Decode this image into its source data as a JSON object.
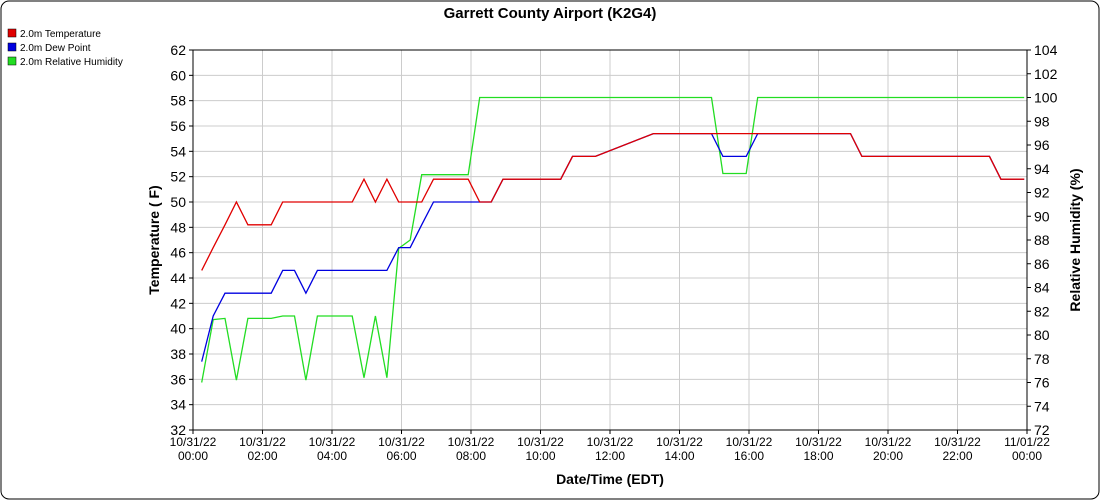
{
  "chart_data": {
    "type": "line",
    "title": "Garrett County Airport (K2G4)",
    "xlabel": "Date/Time (EDT)",
    "ylabel": "Temperature ( F)",
    "y2label": "Relative Humidity (%)",
    "x": [
      0.25,
      0.58,
      0.92,
      1.25,
      1.58,
      2.25,
      2.58,
      2.92,
      3.25,
      3.58,
      4.58,
      4.92,
      5.25,
      5.58,
      5.92,
      6.25,
      6.58,
      6.92,
      7.92,
      8.25,
      8.58,
      8.92,
      10.58,
      10.92,
      11.58,
      13.25,
      14.92,
      15.25,
      15.92,
      16.25,
      18.92,
      19.25,
      22.92,
      23.25,
      23.92
    ],
    "series": [
      {
        "name": "2.0m Temperature",
        "color": "#e00000",
        "axis": "y",
        "values": [
          44.6,
          46.4,
          48.2,
          50,
          48.2,
          48.2,
          50,
          50,
          50,
          50,
          50,
          51.8,
          50,
          51.8,
          50,
          50,
          50,
          51.8,
          51.8,
          50,
          50,
          51.8,
          51.8,
          53.6,
          53.6,
          55.4,
          55.4,
          55.4,
          55.4,
          55.4,
          55.4,
          53.6,
          53.6,
          51.8,
          51.8
        ]
      },
      {
        "name": "2.0m Dew Point",
        "color": "#0000e0",
        "axis": "y",
        "values": [
          37.4,
          41,
          42.8,
          42.8,
          42.8,
          42.8,
          44.6,
          44.6,
          42.8,
          44.6,
          44.6,
          44.6,
          44.6,
          44.6,
          46.4,
          46.4,
          48.2,
          50,
          50,
          50,
          50,
          51.8,
          51.8,
          53.6,
          53.6,
          55.4,
          55.4,
          53.6,
          53.6,
          55.4,
          55.4,
          53.6,
          53.6,
          51.8,
          51.8
        ]
      },
      {
        "name": "2.0m Relative Humidity",
        "color": "#22dd22",
        "axis": "y2",
        "values": [
          76,
          81.3,
          81.4,
          76.2,
          81.4,
          81.4,
          81.6,
          81.6,
          76.2,
          81.6,
          81.6,
          76.4,
          81.6,
          76.4,
          87.3,
          88,
          93.5,
          93.5,
          93.5,
          100,
          100,
          100,
          100,
          100,
          100,
          100,
          100,
          93.6,
          93.6,
          100,
          100,
          100,
          100,
          100,
          100
        ]
      }
    ],
    "xlim": [
      0,
      24
    ],
    "xticks": [
      {
        "value": 0,
        "label": "10/31/22\n00:00"
      },
      {
        "value": 2,
        "label": "10/31/22\n02:00"
      },
      {
        "value": 4,
        "label": "10/31/22\n04:00"
      },
      {
        "value": 6,
        "label": "10/31/22\n06:00"
      },
      {
        "value": 8,
        "label": "10/31/22\n08:00"
      },
      {
        "value": 10,
        "label": "10/31/22\n10:00"
      },
      {
        "value": 12,
        "label": "10/31/22\n12:00"
      },
      {
        "value": 14,
        "label": "10/31/22\n14:00"
      },
      {
        "value": 16,
        "label": "10/31/22\n16:00"
      },
      {
        "value": 18,
        "label": "10/31/22\n18:00"
      },
      {
        "value": 20,
        "label": "10/31/22\n20:00"
      },
      {
        "value": 22,
        "label": "10/31/22\n22:00"
      },
      {
        "value": 24,
        "label": "11/01/22\n00:00"
      }
    ],
    "ylim": [
      32,
      62
    ],
    "yticks": [
      32,
      34,
      36,
      38,
      40,
      42,
      44,
      46,
      48,
      50,
      52,
      54,
      56,
      58,
      60,
      62
    ],
    "y2lim": [
      72,
      104
    ],
    "y2ticks": [
      72,
      74,
      76,
      78,
      80,
      82,
      84,
      86,
      88,
      90,
      92,
      94,
      96,
      98,
      100,
      102,
      104
    ],
    "grid": true,
    "legend": "top-left"
  }
}
